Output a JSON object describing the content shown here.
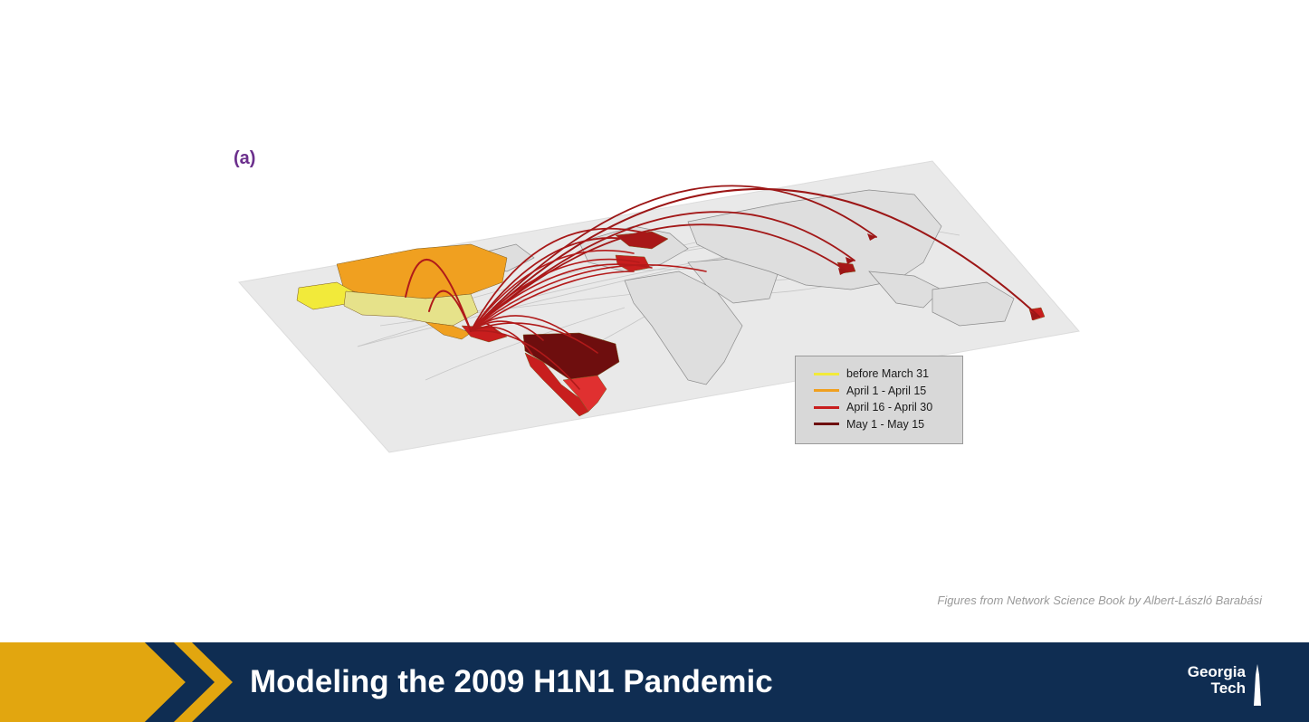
{
  "figure": {
    "panel_label": "(a)",
    "legend": [
      {
        "label": "before March 31",
        "color": "#f2ea3a"
      },
      {
        "label": "April 1 - April 15",
        "color": "#f0a020"
      },
      {
        "label": "April 16 - April 30",
        "color": "#c81e1e"
      },
      {
        "label": "May 1 - May 15",
        "color": "#6e0e0e"
      }
    ]
  },
  "credit": "Figures from Network Science Book by Albert-László Barabási",
  "footer": {
    "title": "Modeling the 2009 H1N1 Pandemic",
    "logo_line1": "Georgia",
    "logo_line2": "Tech",
    "accent_color": "#e2a60f",
    "background_color": "#0f2d52"
  }
}
